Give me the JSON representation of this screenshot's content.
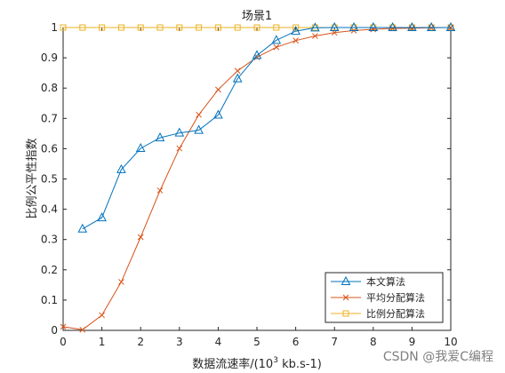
{
  "chart_data": {
    "type": "line",
    "title": "场景1",
    "xlabel_prefix": "数据流速率/(10",
    "xlabel_sup": "3",
    "xlabel_suffix": " kb.s-1)",
    "ylabel": "比例公平性指数",
    "xlim": [
      0,
      10
    ],
    "ylim": [
      0,
      1
    ],
    "x_ticks": [
      "0",
      "1",
      "2",
      "3",
      "4",
      "5",
      "6",
      "7",
      "8",
      "9",
      "10"
    ],
    "y_ticks": [
      "0",
      "0.1",
      "0.2",
      "0.3",
      "0.4",
      "0.5",
      "0.6",
      "0.7",
      "0.8",
      "0.9",
      "1"
    ],
    "grid": false,
    "legend_position": "bottom-right",
    "series": [
      {
        "name": "本文算法",
        "color": "#0072BD",
        "marker": "triangle",
        "x": [
          0.5,
          1,
          1.5,
          2,
          2.5,
          3,
          3.5,
          4,
          4.5,
          5,
          5.5,
          6,
          6.5,
          7,
          7.5,
          8,
          8.5,
          9,
          9.5,
          10
        ],
        "y": [
          0.335,
          0.372,
          0.531,
          0.601,
          0.636,
          0.652,
          0.661,
          0.711,
          0.831,
          0.908,
          0.958,
          0.988,
          0.999,
          1,
          1,
          1,
          1,
          1,
          1,
          1
        ]
      },
      {
        "name": "平均分配算法",
        "color": "#D95319",
        "marker": "x",
        "x": [
          0,
          0.5,
          1,
          1.5,
          2,
          2.5,
          3,
          3.5,
          4,
          4.5,
          5,
          5.5,
          6,
          6.5,
          7,
          7.5,
          8,
          8.5,
          9,
          9.5,
          10
        ],
        "y": [
          0.012,
          0.002,
          0.05,
          0.16,
          0.308,
          0.462,
          0.601,
          0.712,
          0.795,
          0.857,
          0.902,
          0.935,
          0.957,
          0.972,
          0.983,
          0.99,
          0.994,
          0.997,
          0.998,
          0.999,
          1
        ]
      },
      {
        "name": "比例分配算法",
        "color": "#EDB120",
        "marker": "square",
        "x": [
          0,
          0.5,
          1,
          1.5,
          2,
          2.5,
          3,
          3.5,
          4,
          4.5,
          5,
          5.5,
          6,
          6.5,
          7,
          7.5,
          8,
          8.5,
          9,
          9.5,
          10
        ],
        "y": [
          1,
          1,
          1,
          1,
          1,
          1,
          1,
          1,
          1,
          1,
          1,
          1,
          1,
          1,
          1,
          1,
          1,
          1,
          1,
          1,
          1
        ]
      }
    ]
  },
  "watermark": "CSDN @我爱C编程"
}
